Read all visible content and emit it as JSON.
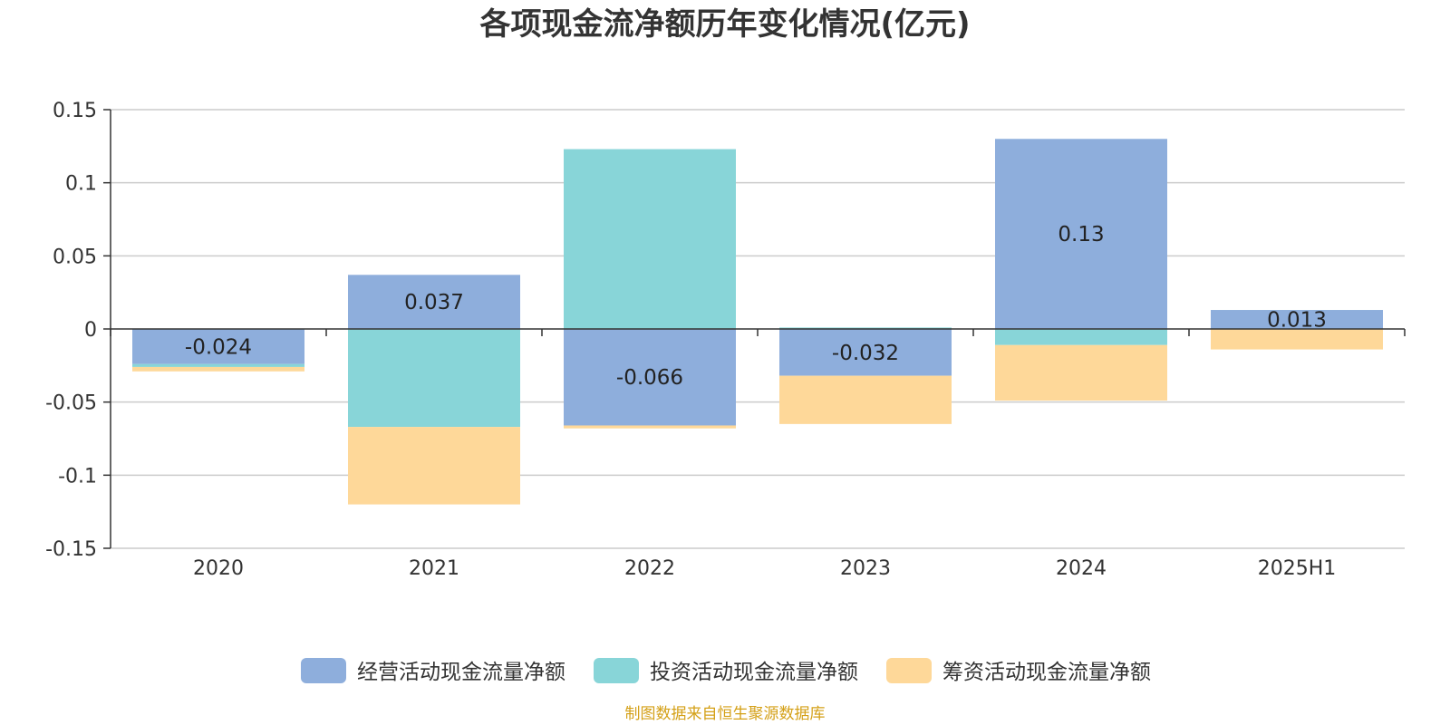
{
  "chart_data": {
    "type": "bar",
    "stacked": true,
    "title": "各项现金流净额历年变化情况(亿元)",
    "categories": [
      "2020",
      "2021",
      "2022",
      "2023",
      "2024",
      "2025H1"
    ],
    "series": [
      {
        "name": "经营活动现金流量净额",
        "color": "#8eaedc",
        "values": [
          -0.024,
          0.037,
          -0.066,
          -0.032,
          0.13,
          0.013
        ],
        "data_labels": [
          "-0.024",
          "0.037",
          "-0.066",
          "-0.032",
          "0.13",
          "0.013"
        ]
      },
      {
        "name": "投资活动现金流量净额",
        "color": "#88d5d8",
        "values": [
          -0.002,
          -0.067,
          0.123,
          0.001,
          -0.011,
          0.0
        ]
      },
      {
        "name": "筹资活动现金流量净额",
        "color": "#fed899",
        "values": [
          -0.003,
          -0.053,
          -0.002,
          -0.033,
          -0.038,
          -0.014
        ]
      }
    ],
    "y_ticks": [
      0.15,
      0.1,
      0.05,
      0,
      -0.05,
      -0.1,
      -0.15
    ],
    "y_tick_labels": [
      "0.15",
      "0.1",
      "0.05",
      "0",
      "-0.05",
      "-0.1",
      "-0.15"
    ],
    "ylim": [
      -0.15,
      0.15
    ],
    "grid": true,
    "legend_position": "bottom-center",
    "source": "制图数据来自恒生聚源数据库",
    "source_color": "#d4a017",
    "axis_color": "#333333",
    "grid_color": "#cccccc"
  }
}
